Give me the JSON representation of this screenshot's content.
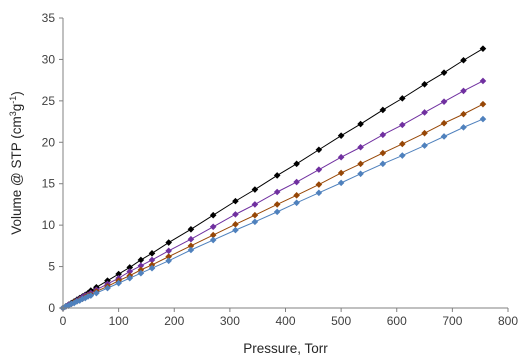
{
  "chart_data": {
    "type": "line",
    "title": "",
    "xlabel": "Pressure, Torr",
    "ylabel_parts": [
      "Volume @ STP (cm",
      "3",
      "g",
      "-1",
      ")"
    ],
    "xlim": [
      0,
      800
    ],
    "ylim": [
      0,
      35
    ],
    "x_ticks": [
      0,
      100,
      200,
      300,
      400,
      500,
      600,
      700,
      800
    ],
    "y_ticks": [
      0,
      5,
      10,
      15,
      20,
      25,
      30,
      35
    ],
    "grid": false,
    "legend": "none",
    "x": [
      0,
      5,
      10,
      15,
      20,
      25,
      30,
      35,
      40,
      45,
      50,
      60,
      80,
      100,
      120,
      140,
      160,
      190,
      230,
      270,
      310,
      345,
      385,
      420,
      460,
      500,
      535,
      575,
      610,
      650,
      685,
      720,
      755
    ],
    "series": [
      {
        "color": "#000000",
        "values": [
          0.0,
          0.2,
          0.4,
          0.6,
          0.8,
          1.0,
          1.2,
          1.4,
          1.6,
          1.8,
          2.1,
          2.5,
          3.3,
          4.1,
          4.9,
          5.8,
          6.6,
          7.9,
          9.5,
          11.2,
          12.9,
          14.3,
          16.0,
          17.4,
          19.1,
          20.8,
          22.2,
          23.9,
          25.3,
          27.0,
          28.4,
          29.9,
          31.3
        ]
      },
      {
        "color": "#7030A0",
        "values": [
          0.0,
          0.2,
          0.4,
          0.5,
          0.7,
          0.9,
          1.1,
          1.3,
          1.5,
          1.6,
          1.8,
          2.2,
          2.9,
          3.6,
          4.4,
          5.1,
          5.8,
          6.9,
          8.3,
          9.8,
          11.3,
          12.5,
          14.0,
          15.2,
          16.7,
          18.2,
          19.4,
          20.9,
          22.1,
          23.6,
          24.9,
          26.2,
          27.4
        ]
      },
      {
        "color": "#974706",
        "values": [
          0.0,
          0.2,
          0.3,
          0.5,
          0.7,
          0.8,
          1.0,
          1.1,
          1.3,
          1.5,
          1.6,
          2.0,
          2.6,
          3.3,
          3.9,
          4.6,
          5.2,
          6.2,
          7.5,
          8.8,
          10.1,
          11.2,
          12.5,
          13.6,
          14.9,
          16.3,
          17.4,
          18.7,
          19.8,
          21.1,
          22.3,
          23.4,
          24.6
        ]
      },
      {
        "color": "#4F81BD",
        "values": [
          0.0,
          0.2,
          0.3,
          0.5,
          0.6,
          0.8,
          0.9,
          1.1,
          1.2,
          1.4,
          1.5,
          1.8,
          2.4,
          3.0,
          3.6,
          4.2,
          4.8,
          5.7,
          7.0,
          8.2,
          9.4,
          10.4,
          11.6,
          12.7,
          13.9,
          15.1,
          16.2,
          17.4,
          18.4,
          19.6,
          20.7,
          21.8,
          22.8
        ]
      }
    ]
  }
}
